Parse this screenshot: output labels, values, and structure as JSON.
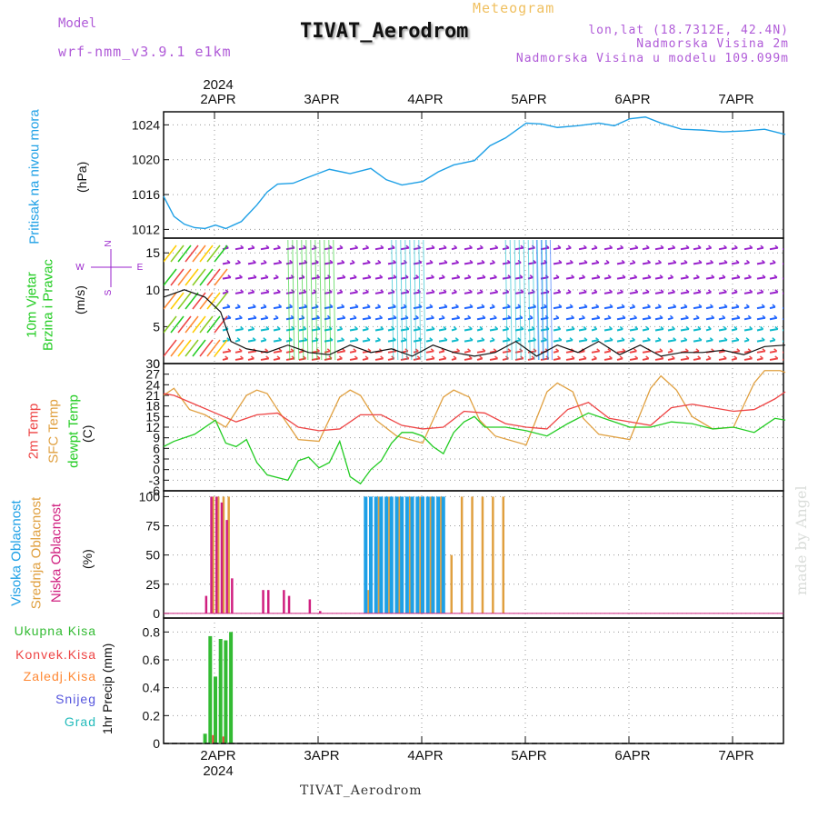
{
  "header": {
    "model_label": "Model",
    "model_value": "wrf-nmm_v3.9.1  e1km",
    "meteogram_label": "Meteogram",
    "station_title": "TIVAT_Aerodrom",
    "info_lines": [
      "lon,lat (18.7312E, 42.4N)",
      "Nadmorska Visina 2m",
      "Nadmorska Visina u modelu 109.099m"
    ]
  },
  "footer": {
    "station": "TIVAT_Aerodrom",
    "made_by": "made by Angel"
  },
  "compass": {
    "n": "N",
    "w": "W",
    "e": "E",
    "s": "S"
  },
  "colors": {
    "pressure": "#1ea0e6",
    "wind_green": "#22cc22",
    "temp_2m": "#ee4444",
    "temp_sfc": "#e0a040",
    "dewpt": "#22cc22",
    "cloud_high": "#1ea0e6",
    "cloud_mid": "#e0a040",
    "cloud_low": "#d02080",
    "precip_total": "#33bb33",
    "precip_conv": "#ee4444",
    "precip_frz": "#ff8833",
    "precip_snow": "#5555dd",
    "precip_grad": "#22bbbb",
    "purple": "#9922cc",
    "blue": "#2266ff",
    "cyan": "#11bbcc"
  },
  "chart_data": [
    {
      "type": "line",
      "panel": "pressure",
      "side_label": "Pritisak na nivou mora",
      "unit": "(hPa)",
      "x_top_year": "2024",
      "x_top_labels": [
        "2APR",
        "3APR",
        "4APR",
        "5APR",
        "6APR",
        "7APR"
      ],
      "ylim": [
        1011,
        1025.5
      ],
      "yticks": [
        1012,
        1016,
        1020,
        1024
      ],
      "series": [
        {
          "x": [
            0,
            0.1,
            0.2,
            0.3,
            0.4,
            0.5,
            0.6,
            0.75,
            0.9,
            1.0,
            1.1,
            1.25,
            1.4,
            1.6,
            1.8,
            2.0,
            2.15,
            2.3,
            2.5,
            2.65,
            2.8,
            3.0,
            3.15,
            3.3,
            3.5,
            3.65,
            3.8,
            4.0,
            4.2,
            4.35,
            4.5,
            4.65,
            4.8,
            5.0,
            5.2,
            5.4,
            5.6,
            5.8,
            6.0
          ],
          "y": [
            1015.8,
            1013.5,
            1012.6,
            1012.2,
            1012.1,
            1012.5,
            1012.1,
            1012.9,
            1014.8,
            1016.3,
            1017.2,
            1017.3,
            1018.0,
            1018.9,
            1018.4,
            1019.0,
            1017.7,
            1017.1,
            1017.5,
            1018.6,
            1019.4,
            1019.9,
            1021.6,
            1022.5,
            1024.2,
            1024.1,
            1023.7,
            1023.9,
            1024.2,
            1023.9,
            1024.7,
            1024.9,
            1024.2,
            1023.5,
            1023.4,
            1023.2,
            1023.3,
            1023.5,
            1022.9
          ]
        }
      ]
    },
    {
      "type": "scatter",
      "panel": "wind",
      "side_label_1": "10m Vjetar",
      "side_label_2": "Brzina i Pravac",
      "unit": "(m/s)",
      "ylim": [
        0,
        17
      ],
      "yticks": [
        0,
        5,
        10,
        15
      ],
      "series": [
        {
          "name": "speed",
          "x": [
            0,
            0.2,
            0.4,
            0.55,
            0.65,
            0.8,
            1.0,
            1.2,
            1.4,
            1.6,
            1.8,
            2.0,
            2.2,
            2.4,
            2.6,
            2.8,
            3.0,
            3.2,
            3.4,
            3.6,
            3.8,
            4.0,
            4.2,
            4.4,
            4.6,
            4.8,
            5.0,
            5.2,
            5.4,
            5.6,
            5.8,
            6.0
          ],
          "y": [
            9,
            10,
            9,
            7,
            3,
            2,
            1.5,
            2.5,
            1.5,
            1.2,
            2.5,
            1.5,
            2.0,
            1.0,
            2.5,
            1.5,
            1.0,
            1.5,
            3.0,
            1.0,
            2.5,
            1.5,
            3.0,
            1.2,
            2.5,
            1.0,
            1.5,
            1.5,
            1.8,
            1.2,
            2.3,
            2.5
          ]
        }
      ]
    },
    {
      "type": "line",
      "panel": "temperature",
      "side_label_1": "2m Temp",
      "side_label_2": "SFC Temp",
      "side_label_3": "dewpt Temp",
      "unit": "(C)",
      "ylim": [
        -6,
        30
      ],
      "yticks": [
        -6,
        -3,
        0,
        3,
        6,
        9,
        12,
        15,
        18,
        21,
        24,
        27,
        30
      ],
      "series": [
        {
          "name": "2m Temp",
          "x": [
            0,
            0.1,
            0.3,
            0.5,
            0.7,
            0.9,
            1.1,
            1.3,
            1.5,
            1.7,
            1.9,
            2.1,
            2.3,
            2.5,
            2.7,
            2.9,
            3.1,
            3.3,
            3.5,
            3.7,
            3.9,
            4.1,
            4.3,
            4.5,
            4.7,
            4.9,
            5.1,
            5.3,
            5.5,
            5.7,
            5.9,
            6.0
          ],
          "y": [
            21.5,
            21.0,
            18.5,
            16.0,
            13.5,
            15.5,
            16.0,
            12.0,
            11.0,
            11.5,
            15.5,
            15.5,
            12.5,
            11.5,
            12.0,
            16.5,
            16.0,
            13.0,
            12.0,
            11.5,
            17.0,
            19.0,
            14.5,
            13.5,
            12.5,
            17.5,
            18.5,
            17.5,
            16.5,
            17.0,
            20.0,
            22.0
          ]
        },
        {
          "name": "SFC Temp",
          "x": [
            0,
            0.1,
            0.25,
            0.4,
            0.6,
            0.8,
            0.9,
            1.0,
            1.1,
            1.3,
            1.5,
            1.7,
            1.8,
            1.9,
            2.05,
            2.25,
            2.5,
            2.7,
            2.8,
            2.95,
            3.05,
            3.2,
            3.5,
            3.7,
            3.8,
            3.95,
            4.05,
            4.2,
            4.5,
            4.7,
            4.8,
            4.95,
            5.1,
            5.3,
            5.5,
            5.7,
            5.8,
            5.95,
            6.0
          ],
          "y": [
            21,
            23,
            17,
            15.5,
            12,
            21,
            22.5,
            21.5,
            17,
            8.5,
            8.0,
            20.5,
            22.5,
            21.0,
            14.0,
            9.5,
            7.5,
            20.5,
            22.5,
            20.5,
            14.0,
            9.5,
            7.0,
            22.0,
            24.5,
            22.0,
            14.5,
            10.0,
            8.5,
            23.0,
            26.5,
            22.5,
            15.0,
            11.5,
            12.0,
            24.5,
            28.0,
            28.0,
            27.5
          ]
        },
        {
          "name": "dewpt Temp",
          "x": [
            0,
            0.1,
            0.3,
            0.5,
            0.6,
            0.7,
            0.8,
            0.9,
            1.0,
            1.2,
            1.3,
            1.4,
            1.5,
            1.6,
            1.7,
            1.8,
            1.9,
            2.0,
            2.1,
            2.2,
            2.3,
            2.4,
            2.5,
            2.6,
            2.7,
            2.8,
            2.9,
            3.0,
            3.1,
            3.3,
            3.5,
            3.7,
            3.9,
            4.1,
            4.3,
            4.5,
            4.7,
            4.9,
            5.1,
            5.3,
            5.5,
            5.7,
            5.9,
            6.0
          ],
          "y": [
            6.5,
            8.0,
            10.0,
            14.0,
            7.5,
            6.5,
            8.5,
            2.0,
            -1.5,
            -3.0,
            2.5,
            3.5,
            0.5,
            2.0,
            8.0,
            -2.0,
            -4.0,
            0.0,
            2.5,
            7.5,
            10.5,
            10.5,
            9.5,
            6.5,
            4.5,
            10.5,
            13.5,
            15.0,
            12.0,
            12.0,
            11.0,
            9.5,
            13.0,
            16.0,
            14.0,
            12.0,
            12.0,
            13.5,
            13.0,
            11.5,
            12.0,
            10.5,
            14.5,
            14.0
          ]
        }
      ]
    },
    {
      "type": "bar",
      "panel": "cloud",
      "side_label_1": "Visoka Oblacnost",
      "side_label_2": "Srednja Oblacnost",
      "side_label_3": "Niska Oblacnost",
      "unit": "(%)",
      "ylim": [
        -4,
        105
      ],
      "yticks": [
        0,
        25,
        50,
        75,
        100
      ],
      "series": [
        {
          "name": "Niska Oblacnost",
          "x": [
            0.4,
            0.45,
            0.5,
            0.55,
            0.6,
            0.65,
            0.95,
            1.0,
            1.15,
            1.2,
            1.4,
            1.5
          ],
          "y": [
            15,
            100,
            100,
            95,
            80,
            30,
            20,
            20,
            20,
            15,
            12,
            2
          ]
        },
        {
          "name": "Srednja Oblacnost",
          "x": [
            0.45,
            0.5,
            0.55,
            0.6,
            1.95,
            2.05,
            2.15,
            2.25,
            2.35,
            2.45,
            2.55,
            2.65,
            2.75,
            2.85,
            2.95,
            3.05,
            3.15,
            3.25
          ],
          "y": [
            100,
            100,
            100,
            100,
            20,
            100,
            100,
            100,
            100,
            100,
            100,
            100,
            50,
            100,
            100,
            100,
            100,
            100
          ]
        },
        {
          "name": "Visoka Oblacnost",
          "x": [
            1.95,
            2.0,
            2.05,
            2.1,
            2.15,
            2.2,
            2.25,
            2.3,
            2.35,
            2.4,
            2.45,
            2.5,
            2.55,
            2.6,
            2.65,
            2.7
          ],
          "y": [
            100,
            100,
            100,
            100,
            100,
            100,
            100,
            100,
            100,
            100,
            100,
            100,
            100,
            100,
            100,
            100
          ]
        }
      ]
    },
    {
      "type": "bar",
      "panel": "precip",
      "legend": [
        "Ukupna Kisa",
        "Konvek.Kisa",
        "Zaledj.Kisa",
        "Snijeg",
        "Grad"
      ],
      "ylabel": "1hr Precip (mm)",
      "ylim": [
        0,
        0.9
      ],
      "yticks": [
        0,
        0.2,
        0.4,
        0.6,
        0.8
      ],
      "x_bottom_labels": [
        "2APR",
        "3APR",
        "4APR",
        "5APR",
        "6APR",
        "7APR"
      ],
      "x_bottom_year": "2024",
      "series": [
        {
          "name": "Ukupna Kisa",
          "x": [
            0.4,
            0.45,
            0.5,
            0.55,
            0.6,
            0.65
          ],
          "y": [
            0.07,
            0.77,
            0.48,
            0.75,
            0.74,
            0.8
          ]
        },
        {
          "name": "Konvek.Kisa",
          "x": [
            0.45,
            0.55
          ],
          "y": [
            0.06,
            0.05
          ]
        }
      ]
    }
  ]
}
